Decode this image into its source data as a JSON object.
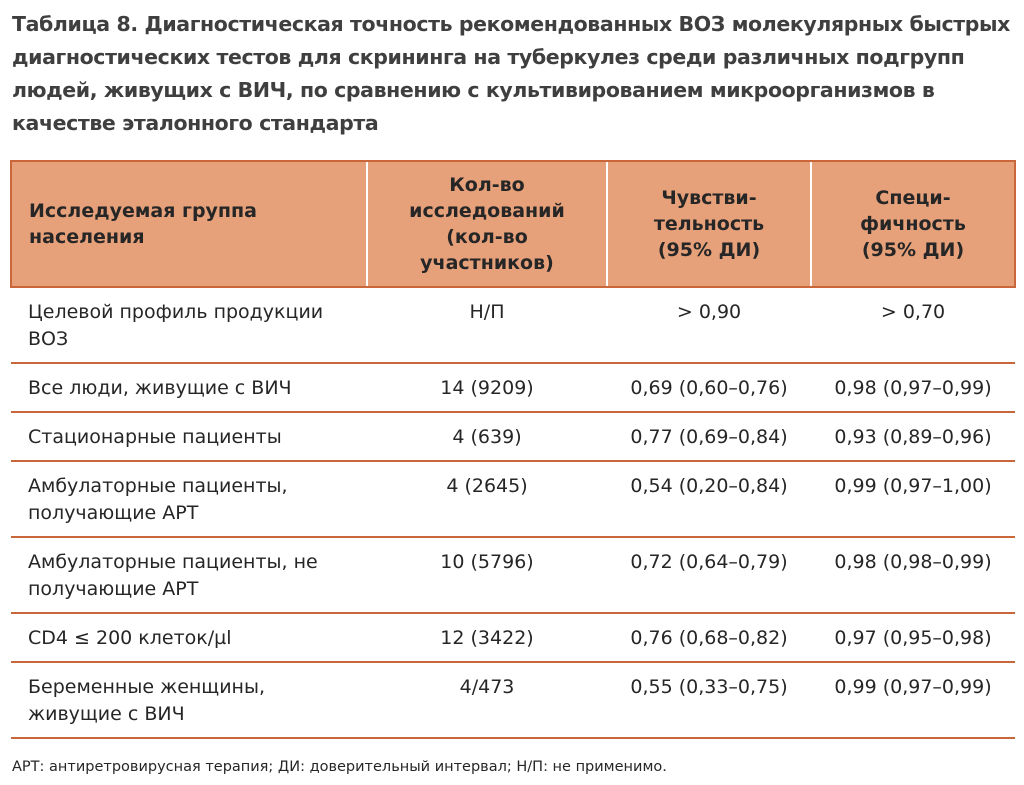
{
  "title": "Таблица 8. Диагностическая точность рекомендованных ВОЗ молекулярных быстрых диагностических тестов для скрининга на туберкулез среди различных подгрупп людей, живущих с ВИЧ, по сравнению с культивированием микроорганизмов в качестве эталонного стандарта",
  "colors": {
    "header_fill": "#e6a07a",
    "rule": "#c9663a",
    "text": "#262626",
    "title_text": "#3f3f3f"
  },
  "table": {
    "headers": {
      "group": "Исследуемая группа\nнаселения",
      "studies": "Кол-во\nисследований\n(кол-во\nучастников)",
      "sensitivity": "Чувстви-\nтельность\n(95% ДИ)",
      "specificity": "Специ-\nфичность\n(95% ДИ)"
    },
    "rows": [
      {
        "group": "Целевой профиль продукции ВОЗ",
        "studies": "Н/П",
        "sensitivity": "> 0,90",
        "specificity": "> 0,70"
      },
      {
        "group": "Все люди, живущие с ВИЧ",
        "studies": "14 (9209)",
        "sensitivity": "0,69 (0,60–0,76)",
        "specificity": "0,98 (0,97–0,99)"
      },
      {
        "group": "Стационарные пациенты",
        "studies": "4 (639)",
        "sensitivity": "0,77 (0,69–0,84)",
        "specificity": "0,93 (0,89–0,96)"
      },
      {
        "group": "Амбулаторные пациенты, получающие АРТ",
        "studies": "4 (2645)",
        "sensitivity": "0,54 (0,20–0,84)",
        "specificity": "0,99 (0,97–1,00)"
      },
      {
        "group": "Амбулаторные пациенты, не получающие АРТ",
        "studies": "10 (5796)",
        "sensitivity": "0,72 (0,64–0,79)",
        "specificity": "0,98 (0,98–0,99)"
      },
      {
        "group": "CD4 ≤ 200 клеток/µl",
        "studies": "12 (3422)",
        "sensitivity": "0,76 (0,68–0,82)",
        "specificity": "0,97 (0,95–0,98)"
      },
      {
        "group": "Беременные женщины, живущие с ВИЧ",
        "studies": "4/473",
        "sensitivity": "0,55 (0,33–0,75)",
        "specificity": "0,99 (0,97–0,99)"
      }
    ]
  },
  "footnote": "АРТ: антиретровирусная терапия; ДИ: доверительный интервал; Н/П: не применимо."
}
